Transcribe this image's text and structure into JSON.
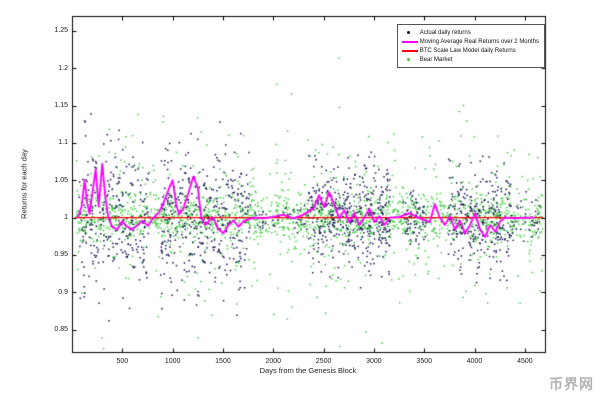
{
  "watermark": {
    "text": "币界网"
  },
  "chart_data": {
    "type": "scatter",
    "title": "",
    "xlabel": "Days from the Genesis Block",
    "ylabel": "Returns for each day",
    "xlim": [
      0,
      4700
    ],
    "ylim": [
      0.82,
      1.27
    ],
    "xticks": [
      500,
      1000,
      1500,
      2000,
      2500,
      3000,
      3500,
      4000,
      4500
    ],
    "yticks": [
      0.85,
      0.9,
      0.95,
      1,
      1.05,
      1.1,
      1.15,
      1.2,
      1.25
    ],
    "grid": false,
    "seed": 42,
    "legend": {
      "position": "top-right",
      "entries": [
        {
          "label": "Actual daily returns",
          "color": "#141450",
          "marker": "dot"
        },
        {
          "label": "Moving Average Real Returns over 2 Months",
          "color": "#ff00ff",
          "marker": "line"
        },
        {
          "label": "BTC Scale Law Model daily Returns",
          "color": "#ff0000",
          "marker": "line"
        },
        {
          "label": "Bear Market",
          "color": "#3fcf3f",
          "marker": "dot"
        }
      ]
    },
    "series": [
      {
        "name": "Bear Market",
        "type": "scatter",
        "color": "#3fcf3f",
        "marker_px": 1.5,
        "clusters": [
          {
            "x": [
              40,
              4680
            ],
            "count": 1250,
            "mean": 1.0,
            "std": 0.014
          },
          {
            "x": [
              40,
              4680
            ],
            "count": 650,
            "mean": 1.0,
            "std": 0.05
          },
          {
            "x": [
              40,
              4680
            ],
            "count": 70,
            "mean": 1.0,
            "std": 0.1
          }
        ]
      },
      {
        "name": "Actual daily returns",
        "type": "scatter",
        "color": "#141450",
        "marker_px": 1.5,
        "clusters": [
          {
            "x": [
              70,
              760
            ],
            "count": 270,
            "mean": 1.0,
            "std": 0.05
          },
          {
            "x": [
              880,
              1760
            ],
            "count": 380,
            "mean": 1.0,
            "std": 0.045
          },
          {
            "x": [
              1760,
              2350
            ],
            "count": 45,
            "mean": 1.0,
            "std": 0.012
          },
          {
            "x": [
              2350,
              3160
            ],
            "count": 420,
            "mean": 1.0,
            "std": 0.034
          },
          {
            "x": [
              3290,
              3520
            ],
            "count": 70,
            "mean": 1.0,
            "std": 0.02
          },
          {
            "x": [
              3740,
              4360
            ],
            "count": 280,
            "mean": 1.0,
            "std": 0.034
          },
          {
            "x": [
              4360,
              4660
            ],
            "count": 35,
            "mean": 1.0,
            "std": 0.018
          }
        ]
      },
      {
        "name": "BTC Scale Law Model daily Returns",
        "type": "line",
        "color": "#ff0000",
        "width": 1.2,
        "points": [
          [
            30,
            1.0
          ],
          [
            4680,
            1.0
          ]
        ]
      },
      {
        "name": "Moving Average Real Returns over 2 Months",
        "type": "line",
        "color": "#ff00ff",
        "width": 1.8,
        "points": [
          [
            60,
            1.0
          ],
          [
            95,
            1.015
          ],
          [
            125,
            1.05
          ],
          [
            150,
            1.02
          ],
          [
            175,
            1.005
          ],
          [
            205,
            1.035
          ],
          [
            235,
            1.065
          ],
          [
            265,
            1.015
          ],
          [
            300,
            1.072
          ],
          [
            330,
            1.03
          ],
          [
            360,
            1.0
          ],
          [
            400,
            0.988
          ],
          [
            450,
            0.984
          ],
          [
            500,
            0.995
          ],
          [
            545,
            0.988
          ],
          [
            600,
            0.984
          ],
          [
            650,
            0.99
          ],
          [
            700,
            0.996
          ],
          [
            755,
            0.989
          ],
          [
            810,
            1.0
          ],
          [
            860,
            1.006
          ],
          [
            910,
            1.02
          ],
          [
            955,
            1.036
          ],
          [
            1000,
            1.05
          ],
          [
            1035,
            1.018
          ],
          [
            1065,
            1.004
          ],
          [
            1105,
            1.012
          ],
          [
            1150,
            1.03
          ],
          [
            1205,
            1.055
          ],
          [
            1250,
            1.04
          ],
          [
            1285,
            1.0
          ],
          [
            1325,
            0.99
          ],
          [
            1365,
            0.996
          ],
          [
            1405,
            1.0
          ],
          [
            1450,
            0.985
          ],
          [
            1505,
            0.979
          ],
          [
            1555,
            0.99
          ],
          [
            1605,
            0.996
          ],
          [
            1655,
            0.988
          ],
          [
            1705,
            0.995
          ],
          [
            1800,
            1.0
          ],
          [
            1900,
            0.999
          ],
          [
            2000,
            1.001
          ],
          [
            2100,
            1.004
          ],
          [
            2200,
            0.999
          ],
          [
            2300,
            1.004
          ],
          [
            2400,
            1.012
          ],
          [
            2455,
            1.03
          ],
          [
            2505,
            1.014
          ],
          [
            2555,
            1.034
          ],
          [
            2605,
            1.018
          ],
          [
            2655,
            0.999
          ],
          [
            2705,
            1.01
          ],
          [
            2755,
            0.994
          ],
          [
            2805,
            1.006
          ],
          [
            2855,
            0.99
          ],
          [
            2905,
            1.0
          ],
          [
            2955,
            1.012
          ],
          [
            3005,
            0.994
          ],
          [
            3055,
            1.002
          ],
          [
            3105,
            0.99
          ],
          [
            3155,
            1.0
          ],
          [
            3255,
            1.001
          ],
          [
            3355,
            1.006
          ],
          [
            3455,
            0.999
          ],
          [
            3555,
            0.994
          ],
          [
            3605,
            1.018
          ],
          [
            3655,
            1.0
          ],
          [
            3705,
            0.99
          ],
          [
            3755,
            1.002
          ],
          [
            3805,
            0.984
          ],
          [
            3855,
            0.996
          ],
          [
            3905,
            0.979
          ],
          [
            3955,
            0.99
          ],
          [
            4005,
            1.006
          ],
          [
            4055,
            0.984
          ],
          [
            4105,
            0.974
          ],
          [
            4155,
            0.99
          ],
          [
            4205,
            0.981
          ],
          [
            4255,
            0.995
          ],
          [
            4305,
            1.0
          ],
          [
            4405,
            0.999
          ],
          [
            4505,
            1.0
          ],
          [
            4605,
            1.0
          ]
        ]
      }
    ]
  }
}
